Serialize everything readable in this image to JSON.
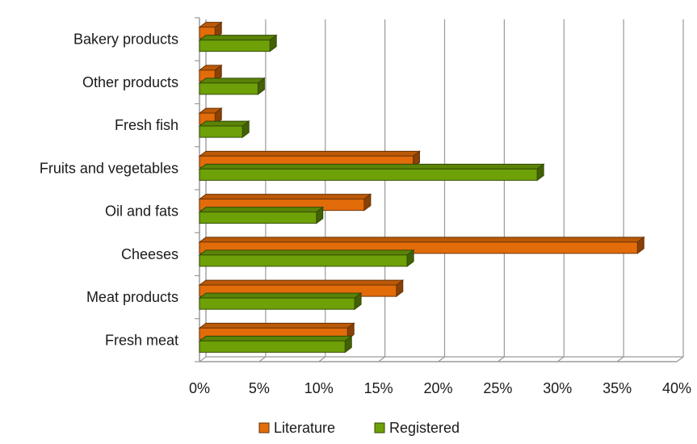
{
  "chart_data": {
    "type": "bar",
    "orientation": "horizontal",
    "title": "",
    "xlabel": "",
    "ylabel": "",
    "categories": [
      "Bakery products",
      "Other products",
      "Fresh fish",
      "Fruits and vegetables",
      "Oil and fats",
      "Cheeses",
      "Meat products",
      "Fresh meat"
    ],
    "series": [
      {
        "name": "Literature",
        "color": "#e36c0a",
        "values": [
          1.3,
          1.3,
          1.3,
          17.9,
          13.8,
          36.7,
          16.5,
          12.4
        ]
      },
      {
        "name": "Registered",
        "color": "#6ea008",
        "values": [
          5.9,
          4.9,
          3.6,
          28.3,
          9.8,
          17.4,
          13.0,
          12.2
        ]
      }
    ],
    "xlim": [
      0,
      40
    ],
    "x_ticks": [
      0,
      5,
      10,
      15,
      20,
      25,
      30,
      35,
      40
    ],
    "x_tick_labels": [
      "0%",
      "5%",
      "10%",
      "15%",
      "20%",
      "25%",
      "30%",
      "35%",
      "40%"
    ],
    "grid": true,
    "legend_position": "bottom",
    "style": "3d"
  }
}
